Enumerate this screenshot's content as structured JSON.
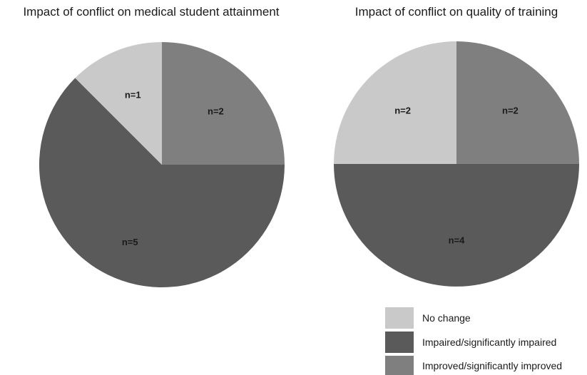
{
  "chart_data": [
    {
      "type": "pie",
      "title": "Impact of conflict on medical student attainment",
      "slices": [
        {
          "category": "No change",
          "value": 1,
          "label": "n=1"
        },
        {
          "category": "Impaired/significantly impaired",
          "value": 5,
          "label": "n=5"
        },
        {
          "category": "Improved/significantly improved",
          "value": 2,
          "label": "n=2"
        }
      ]
    },
    {
      "type": "pie",
      "title": "Impact of conflict on quality of training",
      "slices": [
        {
          "category": "No change",
          "value": 2,
          "label": "n=2"
        },
        {
          "category": "Impaired/significantly impaired",
          "value": 4,
          "label": "n=4"
        },
        {
          "category": "Improved/significantly improved",
          "value": 2,
          "label": "n=2"
        }
      ]
    }
  ],
  "legend": {
    "placement": "bottom-right",
    "items": [
      {
        "label": "No change",
        "color": "#c9c9c9"
      },
      {
        "label": "Impaired/significantly impaired",
        "color": "#5a5a5a"
      },
      {
        "label": "Improved/significantly improved",
        "color": "#7f7f7f"
      }
    ]
  }
}
